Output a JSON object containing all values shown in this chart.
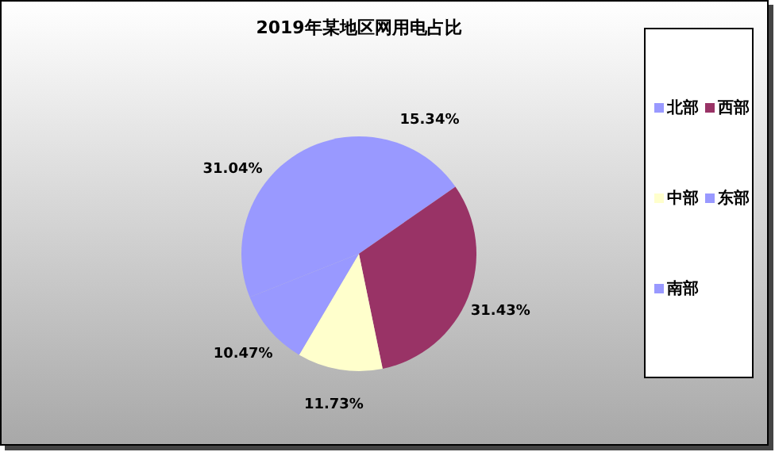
{
  "chart_data": {
    "type": "pie",
    "title": "2019年某地区网用电占比",
    "categories": [
      "北部",
      "西部",
      "中部",
      "东部",
      "南部"
    ],
    "values": [
      15.34,
      31.43,
      11.73,
      10.47,
      31.04
    ],
    "colors": [
      "#9999ff",
      "#993366",
      "#ffffcc",
      "#9999ff",
      "#9999ff"
    ],
    "value_labels": [
      "15.34%",
      "31.43%",
      "11.73%",
      "10.47%",
      "31.04%"
    ],
    "legend": "right"
  }
}
